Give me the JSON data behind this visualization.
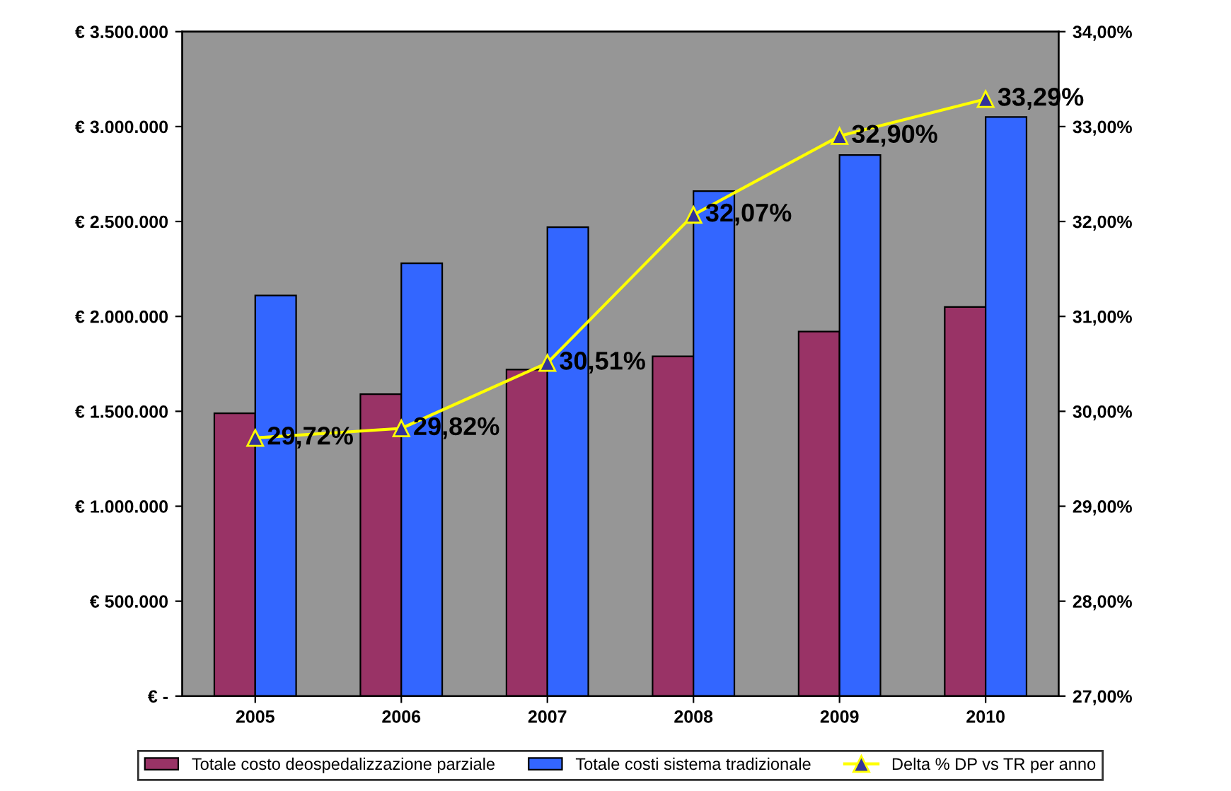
{
  "chart_data": {
    "type": "bar",
    "categories": [
      "2005",
      "2006",
      "2007",
      "2008",
      "2009",
      "2010"
    ],
    "series": [
      {
        "name": "Totale costo deospedalizzazione parziale",
        "color": "#993366",
        "values": [
          1490000,
          1590000,
          1720000,
          1790000,
          1920000,
          2050000
        ]
      },
      {
        "name": "Totale costi sistema tradizionale",
        "color": "#3366ff",
        "values": [
          2110000,
          2280000,
          2470000,
          2660000,
          2850000,
          3050000
        ]
      },
      {
        "name": "Delta % DP vs TR per anno",
        "type": "line",
        "axis": "y2",
        "color": "#ffff00",
        "marker": "triangle",
        "values": [
          29.72,
          29.82,
          30.51,
          32.07,
          32.9,
          33.29
        ],
        "value_labels": [
          "29,72%",
          "29,82%",
          "30,51%",
          "32,07%",
          "32,90%",
          "33,29%"
        ]
      }
    ],
    "ylim": [
      0,
      3500000
    ],
    "yticks": [
      {
        "value": 0,
        "label": "€ -"
      },
      {
        "value": 500000,
        "label": "€ 500.000"
      },
      {
        "value": 1000000,
        "label": "€ 1.000.000"
      },
      {
        "value": 1500000,
        "label": "€ 1.500.000"
      },
      {
        "value": 2000000,
        "label": "€ 2.000.000"
      },
      {
        "value": 2500000,
        "label": "€ 2.500.000"
      },
      {
        "value": 3000000,
        "label": "€ 3.000.000"
      },
      {
        "value": 3500000,
        "label": "€ 3.500.000"
      }
    ],
    "y2lim": [
      27,
      34
    ],
    "y2ticks": [
      {
        "value": 27,
        "label": "27,00%"
      },
      {
        "value": 28,
        "label": "28,00%"
      },
      {
        "value": 29,
        "label": "29,00%"
      },
      {
        "value": 30,
        "label": "30,00%"
      },
      {
        "value": 31,
        "label": "31,00%"
      },
      {
        "value": 32,
        "label": "32,00%"
      },
      {
        "value": 33,
        "label": "33,00%"
      },
      {
        "value": 34,
        "label": "34,00%"
      }
    ],
    "legend": "bottom",
    "grid": false
  }
}
